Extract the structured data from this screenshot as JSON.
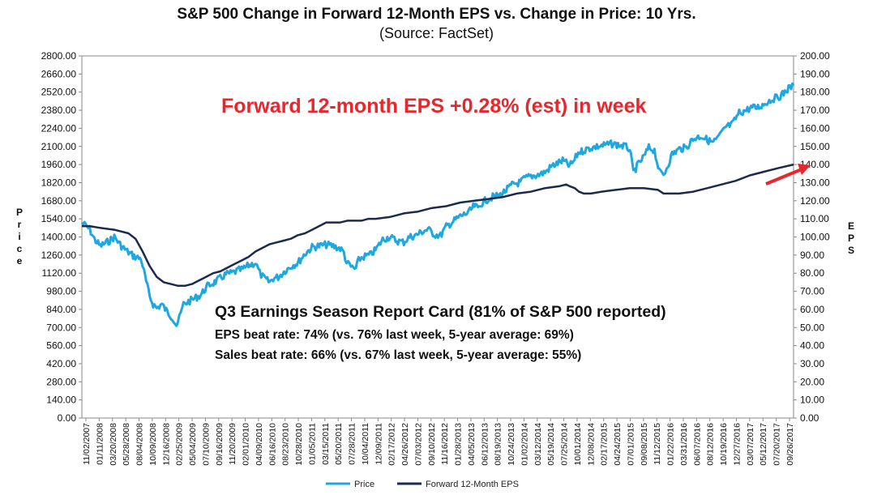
{
  "chart_data": {
    "type": "line",
    "title": "S&P 500 Change in Forward 12-Month EPS vs. Change in Price: 10 Yrs.",
    "subtitle": "(Source: FactSet)",
    "ylabel_left": "Price",
    "ylabel_right": "EPS",
    "ylim_left": [
      0,
      2800
    ],
    "ylim_right": [
      0,
      200
    ],
    "yticks_left": [
      "0.00",
      "140.00",
      "280.00",
      "420.00",
      "560.00",
      "700.00",
      "840.00",
      "980.00",
      "1120.00",
      "1260.00",
      "1400.00",
      "1540.00",
      "1680.00",
      "1820.00",
      "1960.00",
      "2100.00",
      "2240.00",
      "2380.00",
      "2520.00",
      "2660.00",
      "2800.00"
    ],
    "yticks_right": [
      "0.00",
      "10.00",
      "20.00",
      "30.00",
      "40.00",
      "50.00",
      "60.00",
      "70.00",
      "80.00",
      "90.00",
      "100.00",
      "110.00",
      "120.00",
      "130.00",
      "140.00",
      "150.00",
      "160.00",
      "170.00",
      "180.00",
      "190.00",
      "200.00"
    ],
    "xticks": [
      "11/02/2007",
      "01/11/2008",
      "03/20/2008",
      "05/28/2008",
      "08/04/2008",
      "10/09/2008",
      "12/16/2008",
      "02/25/2009",
      "05/04/2009",
      "07/10/2009",
      "09/16/2009",
      "11/20/2009",
      "02/01/2010",
      "04/09/2010",
      "06/16/2010",
      "08/23/2010",
      "10/28/2010",
      "01/05/2011",
      "03/15/2011",
      "05/20/2011",
      "07/28/2011",
      "10/04/2011",
      "12/09/2011",
      "02/17/2012",
      "04/26/2012",
      "07/03/2012",
      "09/10/2012",
      "11/16/2012",
      "01/28/2013",
      "04/05/2013",
      "06/12/2013",
      "08/19/2013",
      "10/24/2013",
      "01/02/2014",
      "03/12/2014",
      "05/19/2014",
      "07/25/2014",
      "10/01/2014",
      "12/08/2014",
      "02/17/2015",
      "04/24/2015",
      "07/01/2015",
      "09/08/2015",
      "11/12/2015",
      "01/22/2016",
      "03/31/2016",
      "06/07/2016",
      "08/12/2016",
      "10/19/2016",
      "12/27/2016",
      "03/07/2017",
      "05/12/2017",
      "07/20/2017",
      "09/26/2017"
    ],
    "x_start": 2007.84,
    "x_end": 2017.92,
    "series": [
      {
        "name": "Price",
        "axis": "left",
        "color": "#1fa8e0",
        "x": [
          2007.84,
          2007.95,
          2008.02,
          2008.1,
          2008.2,
          2008.3,
          2008.4,
          2008.5,
          2008.58,
          2008.68,
          2008.72,
          2008.8,
          2008.85,
          2008.9,
          2008.97,
          2009.05,
          2009.12,
          2009.18,
          2009.22,
          2009.28,
          2009.35,
          2009.42,
          2009.52,
          2009.62,
          2009.72,
          2009.8,
          2009.88,
          2009.96,
          2010.05,
          2010.12,
          2010.2,
          2010.3,
          2010.36,
          2010.42,
          2010.5,
          2010.55,
          2010.62,
          2010.72,
          2010.82,
          2010.9,
          2011.0,
          2011.1,
          2011.2,
          2011.3,
          2011.4,
          2011.5,
          2011.55,
          2011.59,
          2011.65,
          2011.72,
          2011.76,
          2011.8,
          2011.85,
          2011.92,
          2012.0,
          2012.1,
          2012.2,
          2012.3,
          2012.4,
          2012.48,
          2012.56,
          2012.66,
          2012.74,
          2012.83,
          2012.92,
          2013.0,
          2013.1,
          2013.2,
          2013.32,
          2013.4,
          2013.45,
          2013.5,
          2013.58,
          2013.66,
          2013.75,
          2013.85,
          2013.95,
          2014.05,
          2014.1,
          2014.2,
          2014.3,
          2014.4,
          2014.5,
          2014.58,
          2014.65,
          2014.75,
          2014.8,
          2014.87,
          2014.95,
          2015.05,
          2015.15,
          2015.25,
          2015.35,
          2015.45,
          2015.53,
          2015.6,
          2015.65,
          2015.72,
          2015.8,
          2015.87,
          2015.95,
          2016.02,
          2016.08,
          2016.12,
          2016.2,
          2016.3,
          2016.4,
          2016.48,
          2016.55,
          2016.62,
          2016.7,
          2016.78,
          2016.84,
          2016.9,
          2016.96,
          2017.05,
          2017.15,
          2017.25,
          2017.32,
          2017.4,
          2017.48,
          2017.56,
          2017.64,
          2017.7,
          2017.78,
          2017.85,
          2017.92
        ],
        "y": [
          1510,
          1460,
          1380,
          1330,
          1360,
          1400,
          1330,
          1280,
          1250,
          1230,
          1130,
          940,
          880,
          850,
          880,
          820,
          780,
          720,
          770,
          880,
          900,
          920,
          950,
          1020,
          1050,
          1080,
          1110,
          1120,
          1140,
          1150,
          1180,
          1200,
          1120,
          1080,
          1050,
          1080,
          1090,
          1140,
          1180,
          1200,
          1270,
          1320,
          1330,
          1340,
          1330,
          1310,
          1280,
          1200,
          1170,
          1150,
          1220,
          1240,
          1250,
          1260,
          1300,
          1380,
          1400,
          1370,
          1360,
          1400,
          1410,
          1440,
          1460,
          1420,
          1410,
          1480,
          1520,
          1560,
          1590,
          1640,
          1620,
          1660,
          1690,
          1710,
          1720,
          1760,
          1810,
          1820,
          1850,
          1870,
          1880,
          1900,
          1950,
          1970,
          1990,
          1950,
          1980,
          2050,
          2070,
          2090,
          2100,
          2110,
          2120,
          2110,
          2100,
          2080,
          1900,
          1960,
          2020,
          2090,
          2070,
          1900,
          1880,
          1930,
          2040,
          2080,
          2090,
          2150,
          2170,
          2180,
          2150,
          2130,
          2160,
          2200,
          2250,
          2270,
          2360,
          2380,
          2400,
          2400,
          2420,
          2450,
          2470,
          2480,
          2510,
          2550,
          2570
        ]
      },
      {
        "name": "Forward 12-Month EPS",
        "axis": "right",
        "color": "#1b2a4e",
        "x": [
          2007.84,
          2007.95,
          2008.1,
          2008.3,
          2008.5,
          2008.6,
          2008.7,
          2008.8,
          2008.9,
          2009.0,
          2009.1,
          2009.2,
          2009.3,
          2009.4,
          2009.5,
          2009.6,
          2009.7,
          2009.8,
          2009.9,
          2010.0,
          2010.1,
          2010.2,
          2010.3,
          2010.4,
          2010.5,
          2010.6,
          2010.7,
          2010.8,
          2010.9,
          2011.0,
          2011.1,
          2011.2,
          2011.3,
          2011.4,
          2011.5,
          2011.6,
          2011.7,
          2011.8,
          2011.9,
          2012.0,
          2012.2,
          2012.4,
          2012.6,
          2012.8,
          2013.0,
          2013.2,
          2013.4,
          2013.6,
          2013.8,
          2014.0,
          2014.2,
          2014.4,
          2014.6,
          2014.7,
          2014.75,
          2014.82,
          2014.88,
          2014.95,
          2015.05,
          2015.2,
          2015.4,
          2015.6,
          2015.8,
          2016.0,
          2016.08,
          2016.15,
          2016.3,
          2016.5,
          2016.7,
          2016.9,
          2017.1,
          2017.3,
          2017.5,
          2017.7,
          2017.92
        ],
        "y": [
          106,
          106,
          105,
          104,
          102,
          99,
          92,
          84,
          78,
          75,
          74,
          73,
          73,
          74,
          76,
          78,
          80,
          81,
          83,
          85,
          87,
          89,
          92,
          94,
          96,
          97,
          98,
          99,
          101,
          102,
          104,
          106,
          108,
          108,
          108,
          109,
          109,
          109,
          110,
          110,
          111,
          113,
          114,
          116,
          117,
          119,
          120,
          121,
          122,
          124,
          125,
          127,
          128,
          129,
          128,
          127,
          125,
          124,
          124,
          125,
          126,
          127,
          127,
          126,
          124,
          124,
          124,
          125,
          127,
          129,
          131,
          134,
          136,
          138,
          140
        ]
      }
    ],
    "annotations": {
      "eps_change": "Forward 12-month EPS +0.28% (est) in week",
      "report_card_title": "Q3 Earnings Season Report Card (81% of S&P 500 reported)",
      "eps_beat": "EPS beat rate: 74% (vs. 76% last week, 5-year average: 69%)",
      "sales_beat": "Sales beat rate: 66% (vs. 67% last week, 5-year average: 55%)"
    },
    "legend": {
      "position": "bottom-center",
      "entries": [
        "Price",
        "Forward 12-Month EPS"
      ]
    },
    "grid": false
  }
}
